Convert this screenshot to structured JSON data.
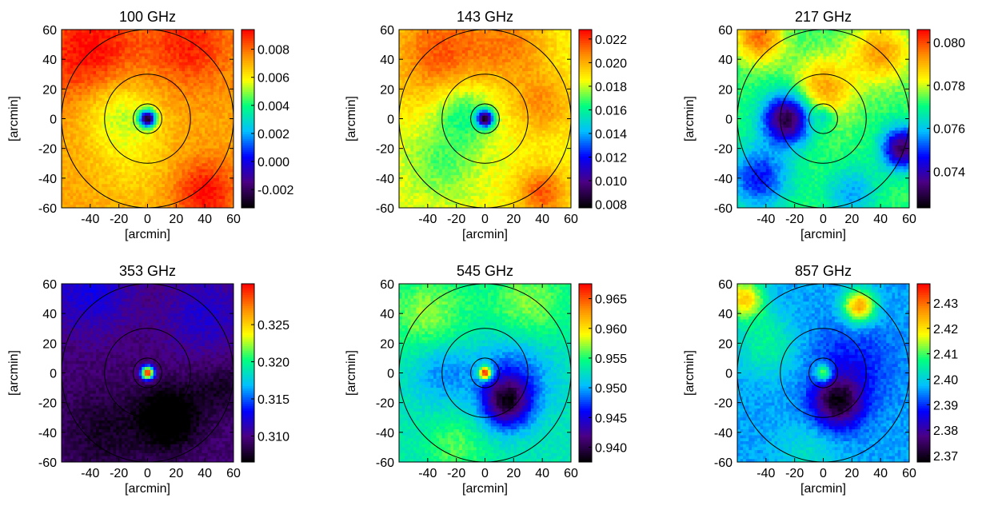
{
  "figure": {
    "type": "heatmap",
    "colormap": [
      "#000000",
      "#4b0082",
      "#0000ff",
      "#00bfff",
      "#00ff7f",
      "#ffff00",
      "#ff8c00",
      "#ff0000"
    ],
    "ring_radii_arcmin": [
      10,
      30,
      60
    ],
    "axis_label": "[arcmin]"
  },
  "chart_data": [
    {
      "type": "heatmap",
      "title": "100 GHz",
      "xlabel": "[arcmin]",
      "ylabel": "[arcmin]",
      "xlim": [
        -60,
        60
      ],
      "ylim": [
        -60,
        60
      ],
      "xticks": [
        -40,
        -20,
        0,
        20,
        40,
        60
      ],
      "yticks": [
        -60,
        -40,
        -20,
        0,
        20,
        40,
        60
      ],
      "xtick_labels": [
        "-40",
        "-20",
        "0",
        "20",
        "40",
        "60"
      ],
      "ytick_labels": [
        "-60",
        "-40",
        "-20",
        "0",
        "20",
        "40",
        "60"
      ],
      "clim": [
        -0.0033,
        0.0094
      ],
      "colorbar_ticks": [
        0.008,
        0.006,
        0.004,
        0.002,
        0.0,
        -0.002
      ],
      "colorbar_labels": [
        "0.008",
        "0.006",
        "0.004",
        "0.002",
        "0.000",
        "-0.002"
      ],
      "field_value": 0.0072,
      "center_value": -0.003,
      "center_sigma": 4,
      "blobs": [
        [
          -40,
          45,
          25,
          0.0022
        ],
        [
          30,
          50,
          20,
          0.0018
        ],
        [
          40,
          -50,
          15,
          0.0022
        ],
        [
          -10,
          -30,
          20,
          -0.0008
        ],
        [
          -20,
          5,
          18,
          -0.002
        ]
      ]
    },
    {
      "type": "heatmap",
      "title": "143 GHz",
      "xlabel": "[arcmin]",
      "ylabel": "[arcmin]",
      "xlim": [
        -60,
        60
      ],
      "ylim": [
        -60,
        60
      ],
      "xticks": [
        -40,
        -20,
        0,
        20,
        40,
        60
      ],
      "yticks": [
        -60,
        -40,
        -20,
        0,
        20,
        40,
        60
      ],
      "xtick_labels": [
        "-40",
        "-20",
        "0",
        "20",
        "40",
        "60"
      ],
      "ytick_labels": [
        "-60",
        "-40",
        "-20",
        "0",
        "20",
        "40",
        "60"
      ],
      "clim": [
        0.0077,
        0.0228
      ],
      "colorbar_ticks": [
        0.022,
        0.02,
        0.018,
        0.016,
        0.014,
        0.012,
        0.01,
        0.008
      ],
      "colorbar_labels": [
        "0.022",
        "0.020",
        "0.018",
        "0.016",
        "0.014",
        "0.012",
        "0.010",
        "0.008"
      ],
      "field_value": 0.0185,
      "center_value": 0.008,
      "center_sigma": 4,
      "blobs": [
        [
          -30,
          45,
          25,
          0.003
        ],
        [
          20,
          50,
          18,
          0.002
        ],
        [
          40,
          10,
          15,
          0.002
        ],
        [
          -30,
          -30,
          18,
          -0.0015
        ],
        [
          -15,
          5,
          15,
          -0.0025
        ],
        [
          40,
          -50,
          12,
          0.003
        ]
      ]
    },
    {
      "type": "heatmap",
      "title": "217 GHz",
      "xlabel": "[arcmin]",
      "ylabel": "[arcmin]",
      "xlim": [
        -60,
        60
      ],
      "ylim": [
        -60,
        60
      ],
      "xticks": [
        -40,
        -20,
        0,
        20,
        40,
        60
      ],
      "yticks": [
        -60,
        -40,
        -20,
        0,
        20,
        40,
        60
      ],
      "xtick_labels": [
        "-40",
        "-20",
        "0",
        "20",
        "40",
        "60"
      ],
      "ytick_labels": [
        "-60",
        "-40",
        "-20",
        "0",
        "20",
        "40",
        "60"
      ],
      "clim": [
        0.0723,
        0.0806
      ],
      "colorbar_ticks": [
        0.08,
        0.078,
        0.076,
        0.074
      ],
      "colorbar_labels": [
        "0.080",
        "0.078",
        "0.076",
        "0.074"
      ],
      "field_value": 0.0772,
      "center_value": 0.0765,
      "center_sigma": 5,
      "blobs": [
        [
          -25,
          0,
          12,
          -0.0045
        ],
        [
          -45,
          -40,
          15,
          -0.0025
        ],
        [
          55,
          -20,
          10,
          -0.004
        ],
        [
          -45,
          55,
          12,
          0.0025
        ],
        [
          40,
          45,
          15,
          0.002
        ],
        [
          0,
          20,
          15,
          0.002
        ],
        [
          20,
          -50,
          12,
          -0.0015
        ]
      ]
    },
    {
      "type": "heatmap",
      "title": "353 GHz",
      "xlabel": "[arcmin]",
      "ylabel": "[arcmin]",
      "xlim": [
        -60,
        60
      ],
      "ylim": [
        -60,
        60
      ],
      "xticks": [
        -40,
        -20,
        0,
        20,
        40,
        60
      ],
      "yticks": [
        -60,
        -40,
        -20,
        0,
        20,
        40,
        60
      ],
      "xtick_labels": [
        "-40",
        "-20",
        "0",
        "20",
        "40",
        "60"
      ],
      "ytick_labels": [
        "-60",
        "-40",
        "-20",
        "0",
        "20",
        "40",
        "60"
      ],
      "clim": [
        0.3065,
        0.3305
      ],
      "colorbar_ticks": [
        0.325,
        0.32,
        0.315,
        0.31
      ],
      "colorbar_labels": [
        "0.325",
        "0.320",
        "0.315",
        "0.310"
      ],
      "field_value": 0.3095,
      "center_value": 0.331,
      "center_sigma": 3,
      "blobs": [
        [
          15,
          -30,
          15,
          -0.005
        ],
        [
          -30,
          -40,
          20,
          -0.002
        ],
        [
          -40,
          55,
          20,
          0.003
        ],
        [
          40,
          40,
          20,
          0.0025
        ],
        [
          50,
          -10,
          12,
          -0.002
        ]
      ]
    },
    {
      "type": "heatmap",
      "title": "545 GHz",
      "xlabel": "[arcmin]",
      "ylabel": "[arcmin]",
      "xlim": [
        -60,
        60
      ],
      "ylim": [
        -60,
        60
      ],
      "xticks": [
        -40,
        -20,
        0,
        20,
        40,
        60
      ],
      "yticks": [
        -60,
        -40,
        -20,
        0,
        20,
        40,
        60
      ],
      "xtick_labels": [
        "-40",
        "-20",
        "0",
        "20",
        "40",
        "60"
      ],
      "ytick_labels": [
        "-60",
        "-40",
        "-20",
        "0",
        "20",
        "40",
        "60"
      ],
      "clim": [
        0.9375,
        0.9675
      ],
      "colorbar_ticks": [
        0.965,
        0.96,
        0.955,
        0.95,
        0.945,
        0.94
      ],
      "colorbar_labels": [
        "0.965",
        "0.960",
        "0.955",
        "0.950",
        "0.945",
        "0.940"
      ],
      "field_value": 0.953,
      "center_value": 0.967,
      "center_sigma": 3,
      "blobs": [
        [
          15,
          -20,
          12,
          -0.012
        ],
        [
          20,
          0,
          20,
          -0.005
        ],
        [
          -30,
          0,
          15,
          -0.004
        ],
        [
          -40,
          40,
          20,
          0.004
        ],
        [
          30,
          45,
          20,
          0.004
        ],
        [
          -20,
          -50,
          15,
          0.003
        ]
      ]
    },
    {
      "type": "heatmap",
      "title": "857 GHz",
      "xlabel": "[arcmin]",
      "ylabel": "[arcmin]",
      "xlim": [
        -60,
        60
      ],
      "ylim": [
        -60,
        60
      ],
      "xticks": [
        -40,
        -20,
        0,
        20,
        40,
        60
      ],
      "yticks": [
        -60,
        -40,
        -20,
        0,
        20,
        40,
        60
      ],
      "xtick_labels": [
        "-40",
        "-20",
        "0",
        "20",
        "40",
        "60"
      ],
      "ytick_labels": [
        "-60",
        "-40",
        "-20",
        "0",
        "20",
        "40",
        "60"
      ],
      "clim": [
        2.3675,
        2.4375
      ],
      "colorbar_ticks": [
        2.43,
        2.42,
        2.41,
        2.4,
        2.39,
        2.38,
        2.37
      ],
      "colorbar_labels": [
        "2.43",
        "2.42",
        "2.41",
        "2.40",
        "2.39",
        "2.38",
        "2.37"
      ],
      "field_value": 2.396,
      "center_value": 2.411,
      "center_sigma": 4,
      "blobs": [
        [
          10,
          -20,
          12,
          -0.025
        ],
        [
          20,
          5,
          20,
          -0.008
        ],
        [
          25,
          45,
          8,
          0.03
        ],
        [
          -55,
          50,
          10,
          0.025
        ],
        [
          -40,
          20,
          15,
          0.01
        ],
        [
          -10,
          -55,
          15,
          0.006
        ]
      ]
    }
  ]
}
